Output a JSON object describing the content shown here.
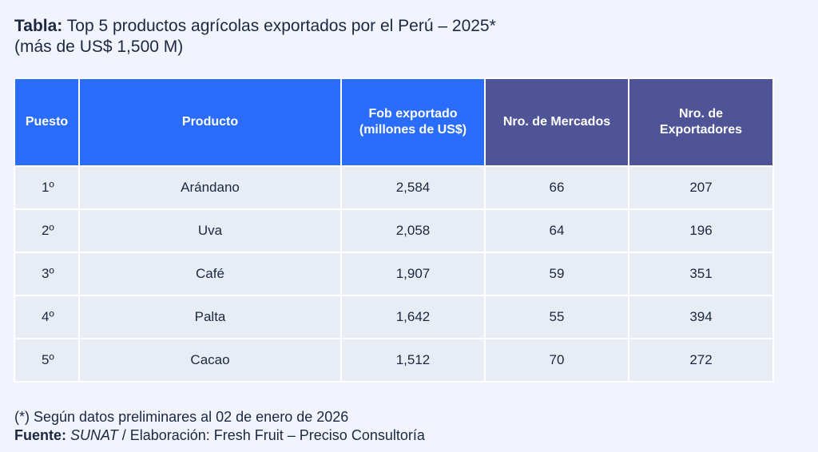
{
  "title": {
    "prefix": "Tabla:",
    "text": "Top 5 productos agrícolas exportados por el Perú – 2025*",
    "subtitle": "(más de US$ 1,500 M)"
  },
  "table": {
    "headers": [
      {
        "lines": [
          "Puesto"
        ],
        "color": "#2a6cfb"
      },
      {
        "lines": [
          "Producto"
        ],
        "color": "#2a6cfb"
      },
      {
        "lines": [
          "Fob exportado",
          "(millones de US$)"
        ],
        "color": "#2a6cfb"
      },
      {
        "lines": [
          "Nro. de Mercados"
        ],
        "color": "#4e5496"
      },
      {
        "lines": [
          "Nro. de",
          "Exportadores"
        ],
        "color": "#4e5496"
      }
    ],
    "rows": [
      {
        "puesto": "1º",
        "producto": "Arándano",
        "fob": "2,584",
        "mercados": "66",
        "exportadores": "207"
      },
      {
        "puesto": "2º",
        "producto": "Uva",
        "fob": "2,058",
        "mercados": "64",
        "exportadores": "196"
      },
      {
        "puesto": "3º",
        "producto": "Café",
        "fob": "1,907",
        "mercados": "59",
        "exportadores": "351"
      },
      {
        "puesto": "4º",
        "producto": "Palta",
        "fob": "1,642",
        "mercados": "55",
        "exportadores": "394"
      },
      {
        "puesto": "5º",
        "producto": "Cacao",
        "fob": "1,512",
        "mercados": "70",
        "exportadores": "272"
      }
    ]
  },
  "footer": {
    "note": "(*) Según datos preliminares al 02 de enero de 2026",
    "source_label": "Fuente:",
    "source_name": "SUNAT",
    "separator": " / ",
    "elaboration": "Elaboración: Fresh Fruit – Preciso Consultoría"
  }
}
